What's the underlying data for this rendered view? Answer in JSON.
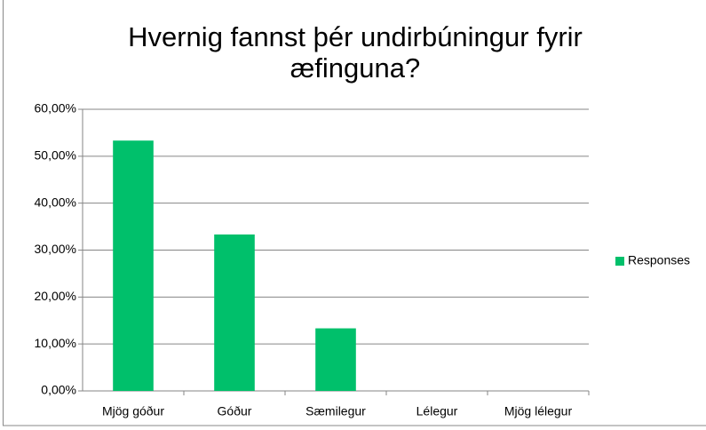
{
  "chart_data": {
    "type": "bar",
    "title": "Hvernig fannst þér undirbúningur fyrir æfinguna?",
    "categories": [
      "Mjög góður",
      "Góður",
      "Sæmilegur",
      "Lélegur",
      "Mjög lélegur"
    ],
    "series": [
      {
        "name": "Responses",
        "color": "#00c06b",
        "values": [
          53.33,
          33.33,
          13.33,
          0,
          0
        ]
      }
    ],
    "ylim": [
      0,
      60
    ],
    "yticks": [
      {
        "value": 0,
        "label": "0,00%"
      },
      {
        "value": 10,
        "label": "10,00%"
      },
      {
        "value": 20,
        "label": "20,00%"
      },
      {
        "value": 30,
        "label": "30,00%"
      },
      {
        "value": 40,
        "label": "40,00%"
      },
      {
        "value": 50,
        "label": "50,00%"
      },
      {
        "value": 60,
        "label": "60,00%"
      }
    ],
    "grid": true,
    "legend": "right"
  }
}
